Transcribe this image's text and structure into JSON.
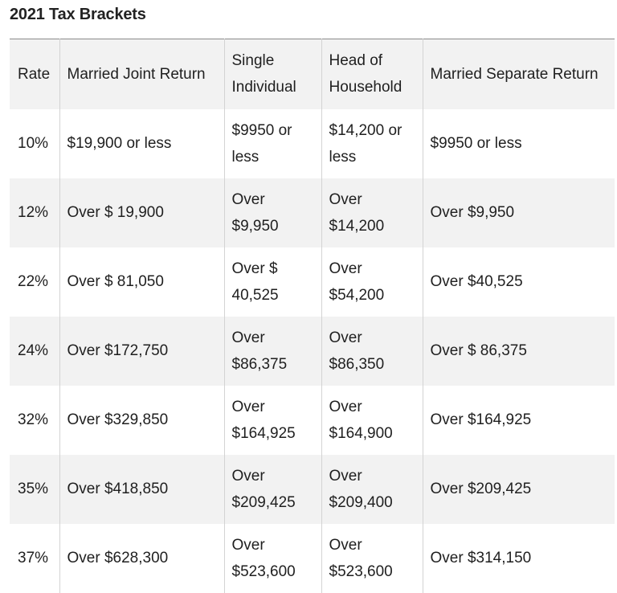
{
  "title": "2021 Tax Brackets",
  "table": {
    "headers": [
      "Rate",
      "Married Joint Return",
      "Single Individual",
      "Head of Household",
      "Married Separate Return"
    ],
    "rows": [
      [
        "10%",
        "$19,900 or less",
        "$9950 or less",
        "$14,200 or less",
        "$9950 or less"
      ],
      [
        "12%",
        "Over $ 19,900",
        "Over $9,950",
        "Over $14,200",
        "Over $9,950"
      ],
      [
        "22%",
        "Over $ 81,050",
        "Over $ 40,525",
        "Over $54,200",
        "Over $40,525"
      ],
      [
        "24%",
        "Over $172,750",
        "Over $86,375",
        "Over $86,350",
        "Over $ 86,375"
      ],
      [
        "32%",
        "Over $329,850",
        "Over $164,925",
        "Over $164,900",
        "Over $164,925"
      ],
      [
        "35%",
        "Over $418,850",
        "Over $209,425",
        "Over $209,400",
        "Over $209,425"
      ],
      [
        "37%",
        "Over $628,300",
        "Over $523,600",
        "Over $523,600",
        "Over $314,150"
      ]
    ]
  },
  "colors": {
    "shaded_row": "#f2f2f2",
    "plain_row": "#ffffff",
    "rule": "#8a8a8a",
    "column_divider": "#d3d3d3",
    "text": "#1f1f1f"
  }
}
